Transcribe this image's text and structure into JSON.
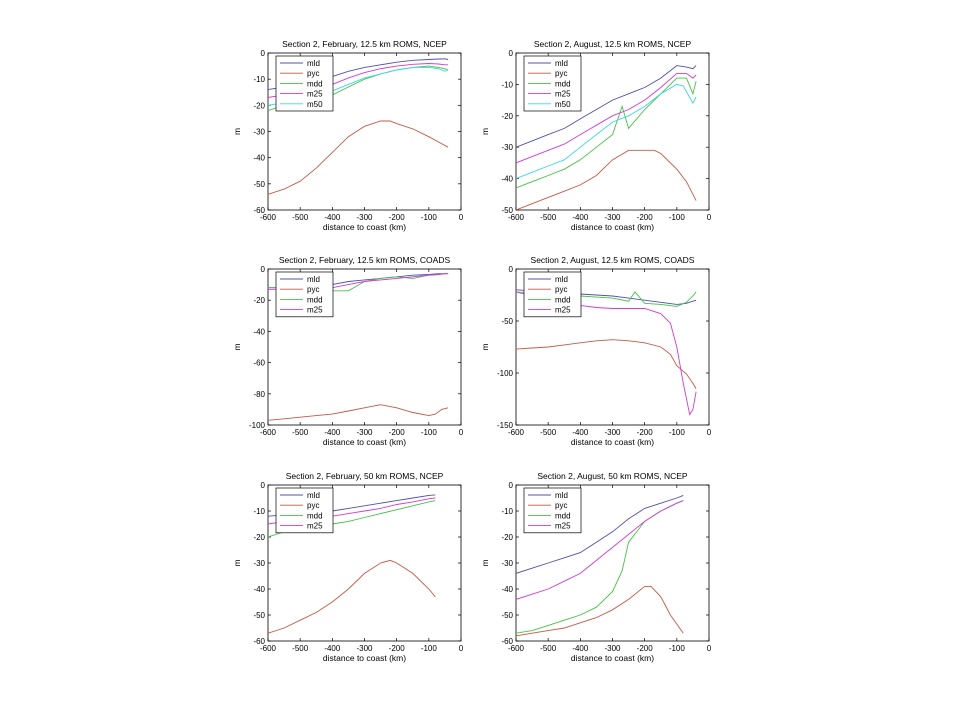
{
  "colors": {
    "mld": "#5050b4",
    "pyc": "#c45a48",
    "mdd": "#46c146",
    "m25": "#d23cd2",
    "m50": "#3cd7e6"
  },
  "chart_data": [
    {
      "type": "line",
      "title": "Section 2, February, 12.5 km ROMS, NCEP",
      "xlabel": "distance to coast (km)",
      "ylabel": "m",
      "xlim": [
        -600,
        0
      ],
      "ylim": [
        -60,
        0
      ],
      "xticks": [
        -600,
        -500,
        -400,
        -300,
        -200,
        -100,
        0
      ],
      "yticks": [
        -60,
        -50,
        -40,
        -30,
        -20,
        -10,
        0
      ],
      "grid": false,
      "legend": "top-left",
      "series": [
        {
          "name": "mld",
          "x": [
            -600,
            -550,
            -500,
            -450,
            -400,
            -350,
            -300,
            -250,
            -200,
            -150,
            -100,
            -70,
            -50,
            -40
          ],
          "y": [
            -14,
            -13,
            -12,
            -11,
            -9,
            -7,
            -5.5,
            -4.5,
            -3.5,
            -2.8,
            -2.5,
            -2.3,
            -2.2,
            -2.5
          ]
        },
        {
          "name": "pyc",
          "x": [
            -600,
            -550,
            -500,
            -450,
            -400,
            -350,
            -300,
            -250,
            -220,
            -200,
            -150,
            -100,
            -70,
            -40
          ],
          "y": [
            -54,
            -52,
            -49,
            -44,
            -38,
            -32,
            -28,
            -26,
            -26,
            -27,
            -29,
            -32,
            -34,
            -36
          ]
        },
        {
          "name": "mdd",
          "x": [
            -600,
            -550,
            -500,
            -450,
            -400,
            -350,
            -300,
            -250,
            -200,
            -150,
            -100,
            -70,
            -50,
            -40
          ],
          "y": [
            -22,
            -20,
            -19,
            -18,
            -16,
            -13,
            -10,
            -8,
            -6.5,
            -5.5,
            -5,
            -5.5,
            -6,
            -6.5
          ]
        },
        {
          "name": "m25",
          "x": [
            -600,
            -550,
            -500,
            -450,
            -400,
            -350,
            -300,
            -250,
            -200,
            -150,
            -100,
            -70,
            -50,
            -40
          ],
          "y": [
            -17,
            -16,
            -15,
            -14,
            -12,
            -9.5,
            -7.5,
            -6,
            -5,
            -4.3,
            -4,
            -4.2,
            -4.5,
            -4.5
          ]
        },
        {
          "name": "m50",
          "x": [
            -600,
            -550,
            -500,
            -450,
            -400,
            -350,
            -300,
            -250,
            -200,
            -150,
            -100,
            -70,
            -50,
            -40
          ],
          "y": [
            -20,
            -19,
            -18,
            -17,
            -14.5,
            -12,
            -9.5,
            -8,
            -6.5,
            -5.5,
            -5.5,
            -6,
            -7,
            -6.5
          ]
        }
      ]
    },
    {
      "type": "line",
      "title": "Section 2, August, 12.5 km ROMS, NCEP",
      "xlabel": "distance to coast (km)",
      "ylabel": "m",
      "xlim": [
        -600,
        0
      ],
      "ylim": [
        -50,
        0
      ],
      "xticks": [
        -600,
        -500,
        -400,
        -300,
        -200,
        -100,
        0
      ],
      "yticks": [
        -50,
        -40,
        -30,
        -20,
        -10,
        0
      ],
      "grid": false,
      "legend": "top-left",
      "series": [
        {
          "name": "mld",
          "x": [
            -600,
            -550,
            -500,
            -450,
            -400,
            -350,
            -300,
            -250,
            -200,
            -150,
            -100,
            -70,
            -50,
            -40
          ],
          "y": [
            -30,
            -28,
            -26,
            -24,
            -21,
            -18,
            -15,
            -13,
            -11,
            -8,
            -4,
            -4.5,
            -5,
            -4
          ]
        },
        {
          "name": "pyc",
          "x": [
            -600,
            -550,
            -500,
            -450,
            -400,
            -350,
            -300,
            -250,
            -200,
            -170,
            -150,
            -100,
            -70,
            -40
          ],
          "y": [
            -50,
            -48,
            -46,
            -44,
            -42,
            -39,
            -34,
            -31,
            -31,
            -31,
            -32,
            -37,
            -41,
            -47
          ]
        },
        {
          "name": "mdd",
          "x": [
            -600,
            -550,
            -500,
            -450,
            -400,
            -350,
            -300,
            -270,
            -250,
            -200,
            -150,
            -100,
            -70,
            -50,
            -40
          ],
          "y": [
            -43,
            -41,
            -39,
            -37,
            -34,
            -30,
            -26,
            -17,
            -24,
            -18,
            -13,
            -8,
            -8,
            -13,
            -9
          ]
        },
        {
          "name": "m25",
          "x": [
            -600,
            -550,
            -500,
            -450,
            -400,
            -350,
            -300,
            -250,
            -200,
            -150,
            -100,
            -70,
            -50,
            -40
          ],
          "y": [
            -35,
            -33,
            -31,
            -29,
            -26,
            -23,
            -20,
            -18,
            -15,
            -11,
            -6.5,
            -6.5,
            -8,
            -7
          ]
        },
        {
          "name": "m50",
          "x": [
            -600,
            -550,
            -500,
            -450,
            -400,
            -350,
            -300,
            -250,
            -200,
            -150,
            -100,
            -80,
            -50,
            -40
          ],
          "y": [
            -40,
            -38,
            -36,
            -34,
            -30,
            -26,
            -22,
            -20,
            -17,
            -13,
            -10,
            -10.5,
            -16,
            -14
          ]
        }
      ]
    },
    {
      "type": "line",
      "title": "Section 2, February, 12.5 km ROMS, COADS",
      "xlabel": "distance to coast (km)",
      "ylabel": "m",
      "xlim": [
        -600,
        0
      ],
      "ylim": [
        -100,
        0
      ],
      "xticks": [
        -600,
        -500,
        -400,
        -300,
        -200,
        -100,
        0
      ],
      "yticks": [
        -100,
        -80,
        -60,
        -40,
        -20,
        0
      ],
      "grid": false,
      "legend": "top-left",
      "series": [
        {
          "name": "mld",
          "x": [
            -600,
            -550,
            -500,
            -450,
            -400,
            -350,
            -300,
            -250,
            -200,
            -150,
            -100,
            -70,
            -50,
            -40
          ],
          "y": [
            -12,
            -12,
            -11,
            -11,
            -10,
            -8,
            -7,
            -6,
            -5,
            -4,
            -3.5,
            -3,
            -3,
            -3
          ]
        },
        {
          "name": "pyc",
          "x": [
            -600,
            -550,
            -500,
            -450,
            -400,
            -350,
            -300,
            -250,
            -200,
            -150,
            -100,
            -80,
            -60,
            -40
          ],
          "y": [
            -97,
            -96,
            -95,
            -94,
            -93,
            -91,
            -89,
            -87,
            -89,
            -92,
            -94,
            -93,
            -90,
            -89
          ]
        },
        {
          "name": "mdd",
          "x": [
            -600,
            -550,
            -500,
            -450,
            -400,
            -350,
            -300,
            -250,
            -200,
            -150,
            -100,
            -70,
            -50,
            -40
          ],
          "y": [
            -12,
            -12,
            -12,
            -13,
            -14,
            -14,
            -8,
            -6,
            -5,
            -6,
            -4,
            -3.5,
            -3,
            -3
          ]
        },
        {
          "name": "m25",
          "x": [
            -600,
            -550,
            -500,
            -450,
            -400,
            -350,
            -300,
            -250,
            -200,
            -150,
            -100,
            -70,
            -50,
            -40
          ],
          "y": [
            -13,
            -13,
            -13,
            -13,
            -12,
            -10,
            -8,
            -7,
            -6,
            -5,
            -4,
            -3.5,
            -3,
            -3
          ]
        }
      ]
    },
    {
      "type": "line",
      "title": "Section 2, August, 12.5 km ROMS, COADS",
      "xlabel": "distance to coast (km)",
      "ylabel": "m",
      "xlim": [
        -600,
        0
      ],
      "ylim": [
        -150,
        0
      ],
      "xticks": [
        -600,
        -500,
        -400,
        -300,
        -200,
        -100,
        0
      ],
      "yticks": [
        -150,
        -100,
        -50,
        0
      ],
      "grid": false,
      "legend": "top-left",
      "series": [
        {
          "name": "mld",
          "x": [
            -600,
            -550,
            -500,
            -450,
            -400,
            -350,
            -300,
            -250,
            -200,
            -150,
            -100,
            -70,
            -50,
            -40
          ],
          "y": [
            -20,
            -21,
            -22,
            -23,
            -24,
            -25,
            -26,
            -28,
            -30,
            -32,
            -34,
            -33,
            -31,
            -30
          ]
        },
        {
          "name": "pyc",
          "x": [
            -600,
            -550,
            -500,
            -450,
            -400,
            -350,
            -300,
            -250,
            -200,
            -150,
            -120,
            -100,
            -70,
            -50,
            -40
          ],
          "y": [
            -77,
            -76,
            -75,
            -73,
            -71,
            -69,
            -68,
            -69,
            -71,
            -75,
            -82,
            -93,
            -101,
            -110,
            -115
          ]
        },
        {
          "name": "mdd",
          "x": [
            -600,
            -550,
            -500,
            -450,
            -400,
            -350,
            -300,
            -250,
            -230,
            -200,
            -150,
            -100,
            -70,
            -50,
            -40
          ],
          "y": [
            -22,
            -23,
            -24,
            -25,
            -26,
            -27,
            -28,
            -31,
            -22,
            -33,
            -34,
            -36,
            -32,
            -26,
            -22
          ]
        },
        {
          "name": "m25",
          "x": [
            -600,
            -550,
            -500,
            -450,
            -400,
            -350,
            -300,
            -250,
            -200,
            -150,
            -120,
            -100,
            -80,
            -60,
            -50,
            -40
          ],
          "y": [
            -22,
            -26,
            -30,
            -33,
            -35,
            -37,
            -38,
            -38,
            -38,
            -43,
            -52,
            -75,
            -110,
            -140,
            -135,
            -118
          ]
        }
      ]
    },
    {
      "type": "line",
      "title": "Section 2, February, 50 km ROMS, NCEP",
      "xlabel": "distance to coast (km)",
      "ylabel": "m",
      "xlim": [
        -600,
        0
      ],
      "ylim": [
        -60,
        0
      ],
      "xticks": [
        -600,
        -500,
        -400,
        -300,
        -200,
        -100,
        0
      ],
      "yticks": [
        -60,
        -50,
        -40,
        -30,
        -20,
        -10,
        0
      ],
      "grid": false,
      "legend": "top-left",
      "series": [
        {
          "name": "mld",
          "x": [
            -600,
            -550,
            -500,
            -450,
            -400,
            -350,
            -300,
            -250,
            -200,
            -150,
            -100,
            -80
          ],
          "y": [
            -12,
            -11.5,
            -11,
            -10.5,
            -10,
            -9,
            -8,
            -7,
            -6,
            -5,
            -4,
            -3.8
          ]
        },
        {
          "name": "pyc",
          "x": [
            -600,
            -550,
            -500,
            -450,
            -400,
            -350,
            -300,
            -250,
            -220,
            -200,
            -150,
            -100,
            -80
          ],
          "y": [
            -57,
            -55,
            -52,
            -49,
            -45,
            -40,
            -34,
            -30,
            -29,
            -30,
            -34,
            -40,
            -43
          ]
        },
        {
          "name": "mdd",
          "x": [
            -600,
            -550,
            -500,
            -450,
            -400,
            -350,
            -300,
            -250,
            -200,
            -150,
            -100,
            -80
          ],
          "y": [
            -20,
            -18,
            -17,
            -16,
            -15,
            -14,
            -12.5,
            -11,
            -9.5,
            -8,
            -6.5,
            -6
          ]
        },
        {
          "name": "m25",
          "x": [
            -600,
            -550,
            -500,
            -450,
            -400,
            -350,
            -300,
            -250,
            -200,
            -150,
            -100,
            -80
          ],
          "y": [
            -15,
            -14,
            -13,
            -12.5,
            -12,
            -11,
            -10,
            -9,
            -7.5,
            -6.5,
            -5.3,
            -5
          ]
        }
      ]
    },
    {
      "type": "line",
      "title": "Section 2, August, 50 km ROMS, NCEP",
      "xlabel": "distance to coast (km)",
      "ylabel": "m",
      "xlim": [
        -600,
        0
      ],
      "ylim": [
        -60,
        0
      ],
      "xticks": [
        -600,
        -500,
        -400,
        -300,
        -200,
        -100,
        0
      ],
      "yticks": [
        -60,
        -50,
        -40,
        -30,
        -20,
        -10,
        0
      ],
      "grid": false,
      "legend": "top-left",
      "series": [
        {
          "name": "mld",
          "x": [
            -600,
            -550,
            -500,
            -450,
            -400,
            -350,
            -300,
            -250,
            -200,
            -150,
            -100,
            -80
          ],
          "y": [
            -34,
            -32,
            -30,
            -28,
            -26,
            -22,
            -18,
            -13,
            -9,
            -7,
            -5,
            -4
          ]
        },
        {
          "name": "pyc",
          "x": [
            -600,
            -550,
            -500,
            -450,
            -400,
            -350,
            -300,
            -250,
            -200,
            -180,
            -150,
            -120,
            -80
          ],
          "y": [
            -58,
            -57,
            -56,
            -55,
            -53,
            -51,
            -48,
            -44,
            -39,
            -39,
            -43,
            -50,
            -57
          ]
        },
        {
          "name": "mdd",
          "x": [
            -600,
            -550,
            -500,
            -450,
            -400,
            -350,
            -300,
            -270,
            -250,
            -200,
            -150,
            -100,
            -80
          ],
          "y": [
            -57,
            -56,
            -54,
            -52,
            -50,
            -47,
            -41,
            -33,
            -22,
            -14,
            -10,
            -7,
            -6
          ]
        },
        {
          "name": "m25",
          "x": [
            -600,
            -550,
            -500,
            -450,
            -400,
            -350,
            -300,
            -250,
            -200,
            -150,
            -100,
            -80
          ],
          "y": [
            -44,
            -42,
            -40,
            -37,
            -34,
            -29,
            -24,
            -19,
            -14,
            -10,
            -7,
            -6
          ]
        }
      ]
    }
  ]
}
